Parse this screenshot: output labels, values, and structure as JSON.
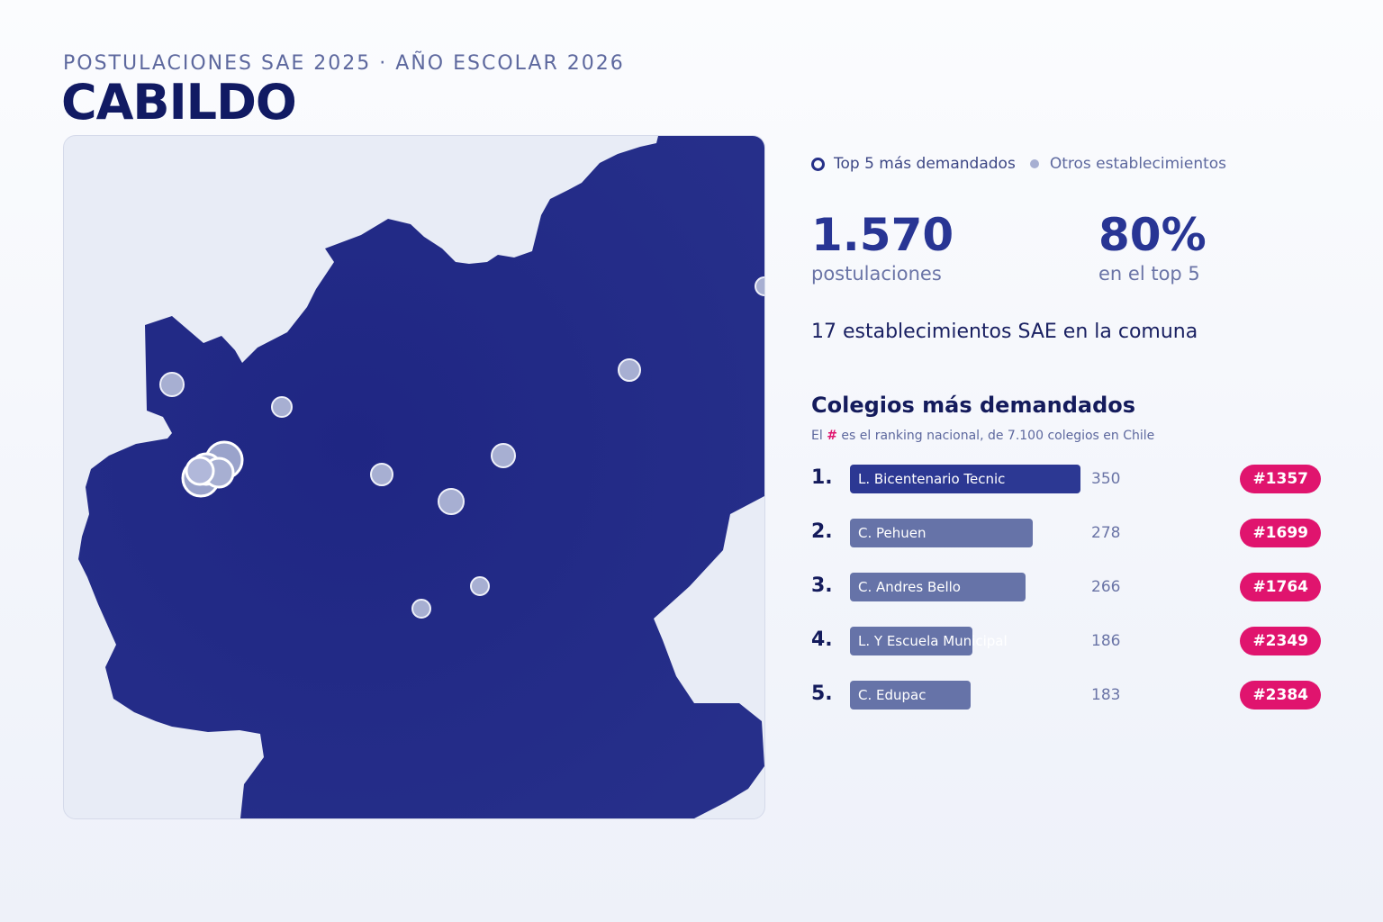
{
  "header": {
    "kicker": "POSTULACIONES SAE 2025 · AÑO ESCOLAR 2026",
    "title": "CABILDO"
  },
  "legend": {
    "top5": "Top 5 más demandados",
    "others": "Otros establecimientos"
  },
  "stats": {
    "applications_value": "1.570",
    "applications_label": "postulaciones",
    "top5_share_value": "80%",
    "top5_share_label": "en el top 5",
    "schools_count_text": "17 establecimientos SAE en la comuna"
  },
  "ranking": {
    "title": "Colegios más demandados",
    "note_prefix": "El",
    "note_symbol": "#",
    "note_suffix": "es el ranking nacional, de 7.100 colegios en Chile",
    "items": [
      {
        "rank": "1.",
        "name": "L. Bicentenario Tecnic",
        "value": "350",
        "value_num": 350,
        "national": "#1357"
      },
      {
        "rank": "2.",
        "name": "C. Pehuen",
        "value": "278",
        "value_num": 278,
        "national": "#1699"
      },
      {
        "rank": "3.",
        "name": "C. Andres Bello",
        "value": "266",
        "value_num": 266,
        "national": "#1764"
      },
      {
        "rank": "4.",
        "name": "L. Y Escuela Municipal",
        "value": "186",
        "value_num": 186,
        "national": "#2349"
      },
      {
        "rank": "5.",
        "name": "C. Edupac",
        "value": "183",
        "value_num": 183,
        "national": "#2384"
      }
    ]
  },
  "colors": {
    "territory": "#252c86",
    "background": "#e8ecf6",
    "accent": "#e0146e",
    "bar_first": "#2c3893",
    "bar_other": "#6673a8",
    "marker": "#a7afd2"
  }
}
